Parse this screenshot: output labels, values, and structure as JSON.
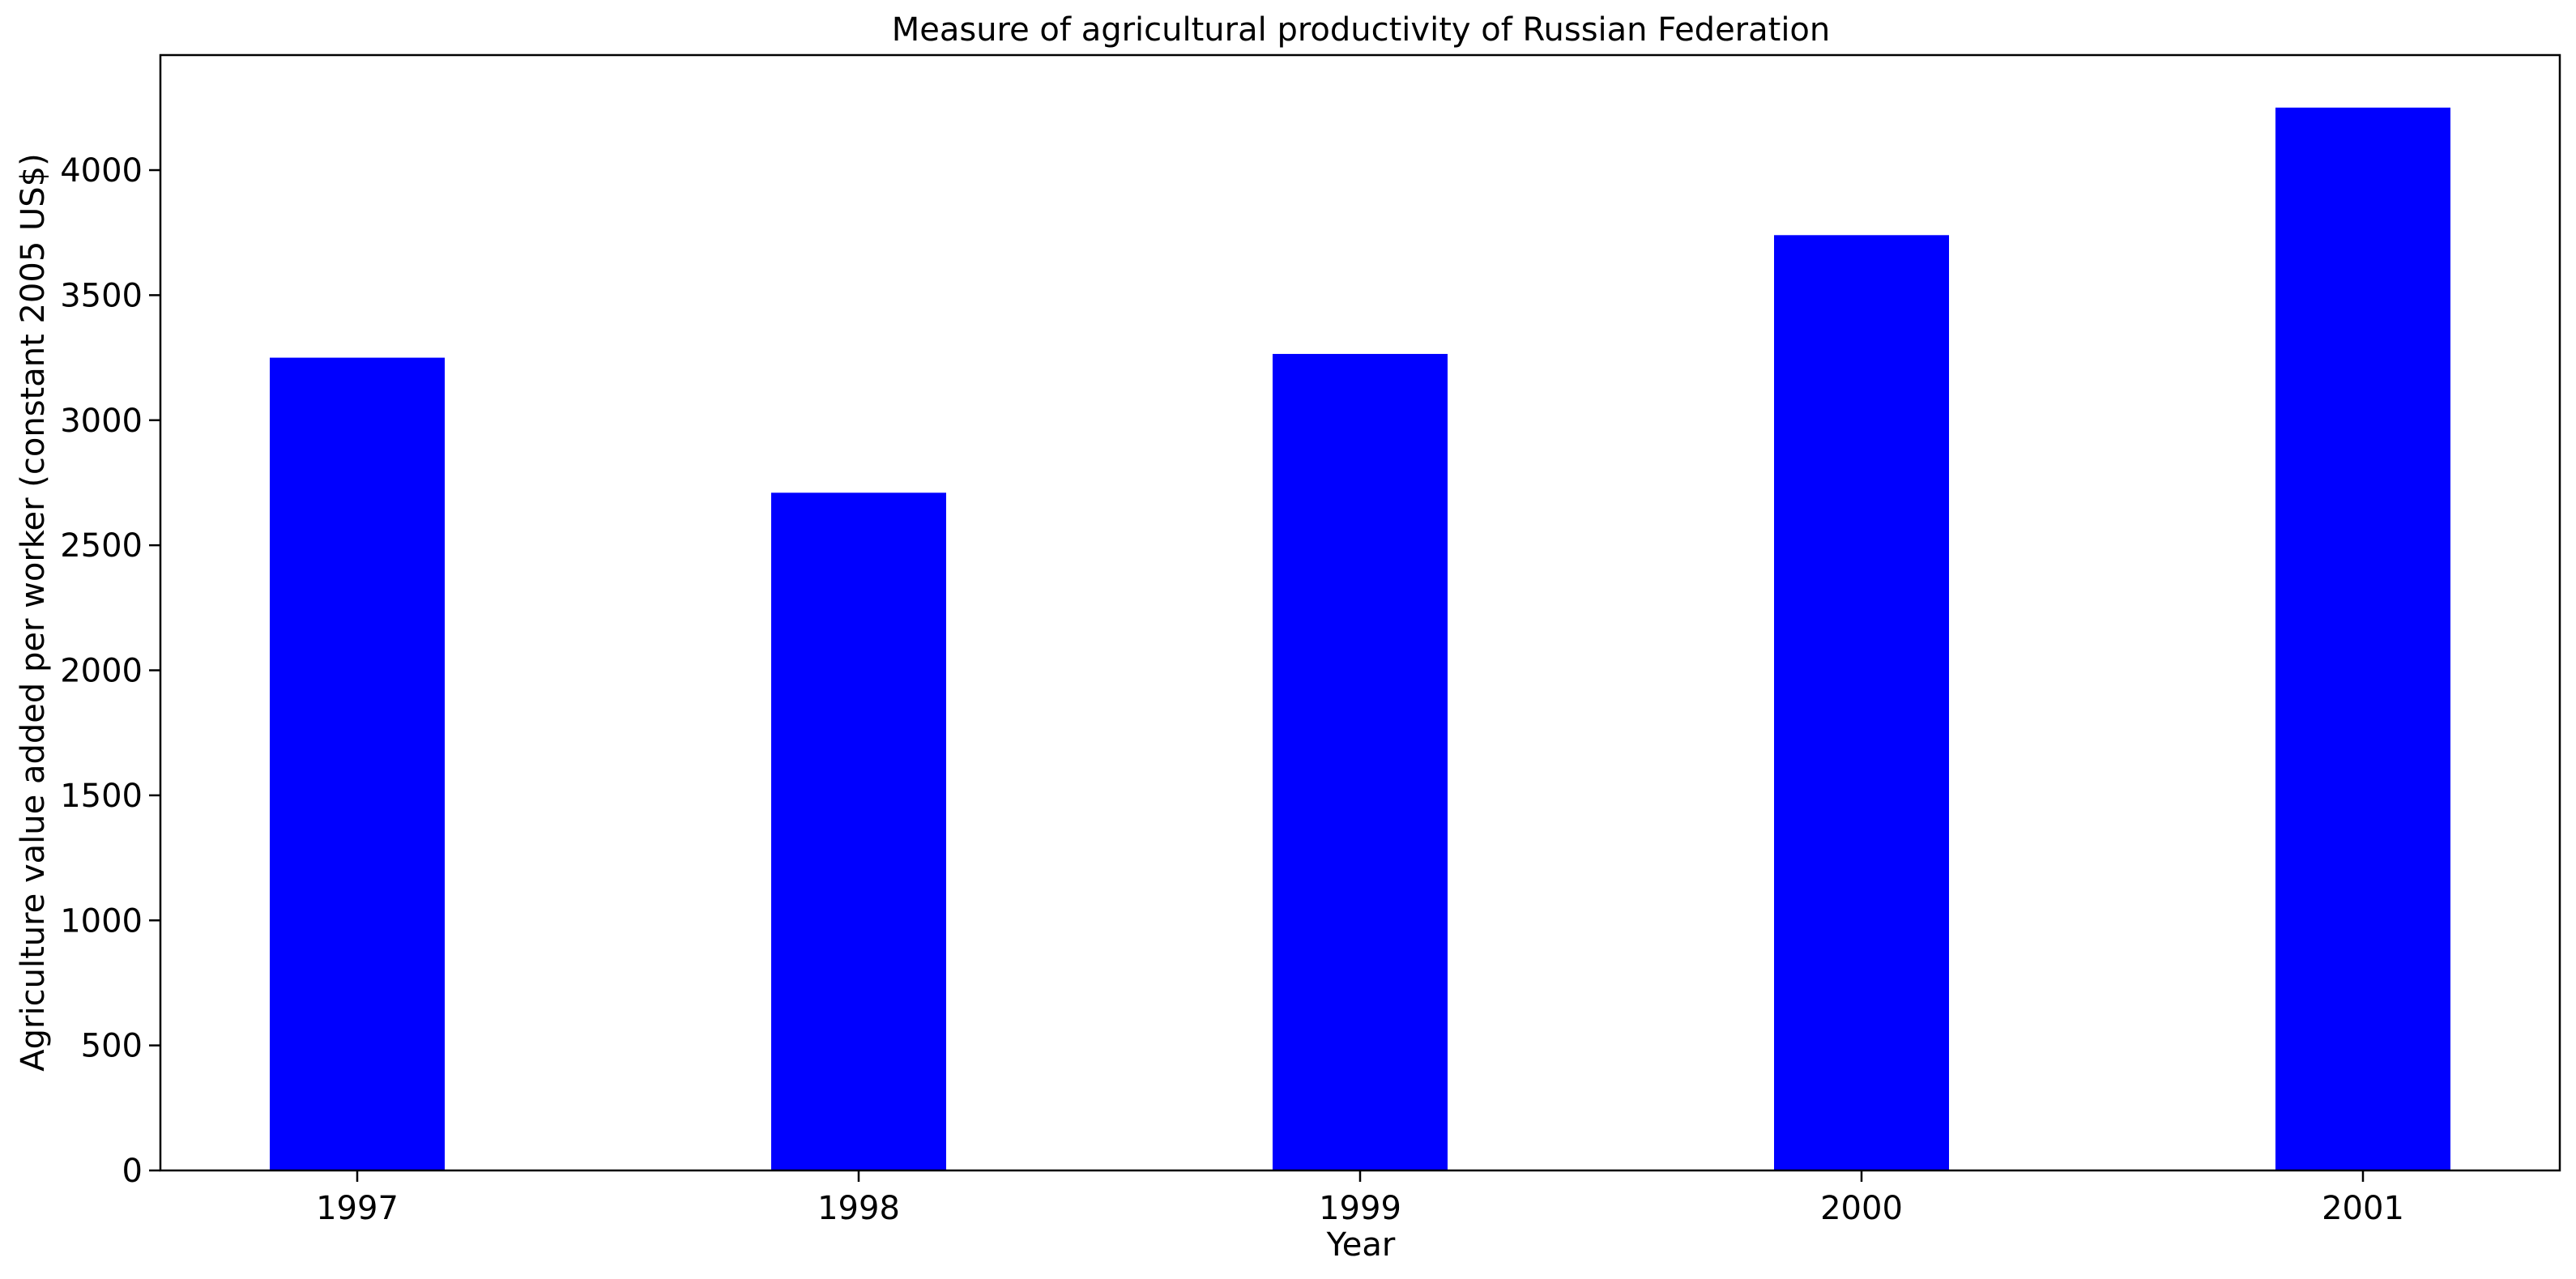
{
  "chart_data": {
    "type": "bar",
    "title": "Measure of agricultural productivity of Russian Federation",
    "xlabel": "Year",
    "ylabel": "Agriculture value added per worker (constant 2005 US$)",
    "categories": [
      "1997",
      "1998",
      "1999",
      "2000",
      "2001"
    ],
    "values": [
      3250,
      2710,
      3265,
      3740,
      4250
    ],
    "ylim": [
      0,
      4460
    ],
    "yticks": [
      0,
      500,
      1000,
      1500,
      2000,
      2500,
      3000,
      3500,
      4000
    ],
    "bar_color": "#0000ff",
    "grid": false,
    "legend": "none"
  }
}
